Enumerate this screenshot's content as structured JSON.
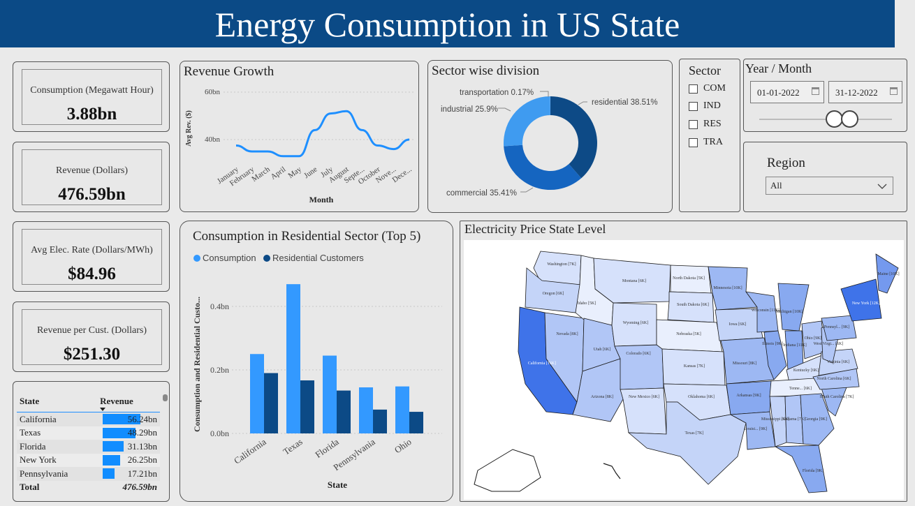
{
  "header": {
    "title": "Energy Consumption in US State"
  },
  "kpis": [
    {
      "label": "Consumption (Megawatt Hour)",
      "value": "3.88bn"
    },
    {
      "label": "Revenue (Dollars)",
      "value": "476.59bn"
    },
    {
      "label": "Avg Elec. Rate (Dollars/MWh)",
      "value": "$84.96"
    },
    {
      "label": "Revenue per Cust. (Dollars)",
      "value": "$251.30"
    }
  ],
  "revenue_growth": {
    "title": "Revenue Growth",
    "ylabel": "Avg Rev. ($)",
    "xlabel": "Month",
    "y_ticks": [
      "60bn",
      "40bn"
    ],
    "months": [
      "January",
      "February",
      "March",
      "April",
      "May",
      "June",
      "July",
      "August",
      "Septe...",
      "October",
      "Nove...",
      "Dece..."
    ]
  },
  "sector_division": {
    "title": "Sector wise division",
    "labels": [
      "transportation 0.17%",
      "residential 38.51%",
      "industrial 25.9%",
      "commercial 35.41%"
    ]
  },
  "sector_filter": {
    "title": "Sector",
    "options": [
      "COM",
      "IND",
      "RES",
      "TRA"
    ]
  },
  "date_filter": {
    "title": "Year / Month",
    "start": "01-01-2022",
    "end": "31-12-2022"
  },
  "region_filter": {
    "title": "Region",
    "selected": "All"
  },
  "residential_chart": {
    "title": "Consumption in Residential Sector (Top 5)",
    "legend": [
      "Consumption",
      "Residential Customers"
    ],
    "ylabel": "Consumption and Residential Custo...",
    "xlabel": "State",
    "y_ticks": [
      "0.4bn",
      "0.2bn",
      "0.0bn"
    ]
  },
  "map": {
    "title": "Electricity Price State Level",
    "labels": [
      "Washington [7K]",
      "Oregon [6K]",
      "California [16K]",
      "Nevada [8K]",
      "Idaho [5K]",
      "Montana [6K]",
      "Utah [6K]",
      "Arizona [8K]",
      "Wyoming [6K]",
      "Colorado [6K]",
      "New Mexico [6K]",
      "North Dakota [5K]",
      "South Dakota [6K]",
      "Nebraska [5K]",
      "Kansas [7K]",
      "Oklahoma [6K]",
      "Texas [7K]",
      "Minnesota [10K]",
      "Iowa [6K]",
      "Missouri [8K]",
      "Arkansas [9K]",
      "Louisi... [9K]",
      "Wisconsin [11K]",
      "Illinois [9K]",
      "Michigan [10K]",
      "Indiana [11K]",
      "Ohio [9K]",
      "Kentucky [6K]",
      "Tenne... [6K]",
      "Mississippi [6K]",
      "Alabama [7K]",
      "Georgia [9K]",
      "Florida [9K]",
      "South Carolina [7K]",
      "North Carolina [6K]",
      "Virginia [6K]",
      "West Virgi... [6K]",
      "Pennsyl... [9K]",
      "New York [12K]",
      "Maine [10K]"
    ]
  },
  "state_table": {
    "headers": [
      "State",
      "Revenue"
    ],
    "rows": [
      {
        "state": "California",
        "revenue": "56.24bn"
      },
      {
        "state": "Texas",
        "revenue": "48.29bn"
      },
      {
        "state": "Florida",
        "revenue": "31.13bn"
      },
      {
        "state": "New York",
        "revenue": "26.25bn"
      },
      {
        "state": "Pennsylvania",
        "revenue": "17.21bn"
      }
    ],
    "total_label": "Total",
    "total_value": "476.59bn"
  },
  "colors": {
    "header_bg": "#0b4a86",
    "consumption": "#3399ff",
    "residential_customers": "#0c4a86",
    "line": "#1e8fff",
    "donut_transportation": "#5aa9f5",
    "donut_residential": "#0d4a86",
    "donut_commercial": "#1565c0",
    "donut_industrial": "#3f9bf0",
    "table_bar": "#118dff"
  },
  "chart_data": [
    {
      "type": "line",
      "title": "Revenue Growth",
      "xlabel": "Month",
      "ylabel": "Avg Rev. ($)",
      "categories": [
        "January",
        "February",
        "March",
        "April",
        "May",
        "June",
        "July",
        "August",
        "September",
        "October",
        "November",
        "December"
      ],
      "values": [
        37.5,
        35,
        35,
        33,
        33,
        44,
        51,
        52,
        44,
        37.5,
        36,
        40
      ],
      "ylim": [
        30,
        60
      ]
    },
    {
      "type": "pie",
      "title": "Sector wise division",
      "categories": [
        "residential",
        "commercial",
        "industrial",
        "transportation"
      ],
      "values": [
        38.51,
        35.41,
        25.9,
        0.17
      ]
    },
    {
      "type": "bar",
      "title": "Consumption in Residential Sector (Top 5)",
      "xlabel": "State",
      "ylabel": "Consumption and Residential Custo...",
      "categories": [
        "California",
        "Texas",
        "Florida",
        "Pennsylvania",
        "Ohio"
      ],
      "series": [
        {
          "name": "Consumption",
          "values": [
            0.25,
            0.47,
            0.245,
            0.145,
            0.148
          ]
        },
        {
          "name": "Residential Customers",
          "values": [
            0.19,
            0.167,
            0.135,
            0.075,
            0.068
          ]
        }
      ],
      "ylim": [
        0,
        0.5
      ]
    }
  ]
}
